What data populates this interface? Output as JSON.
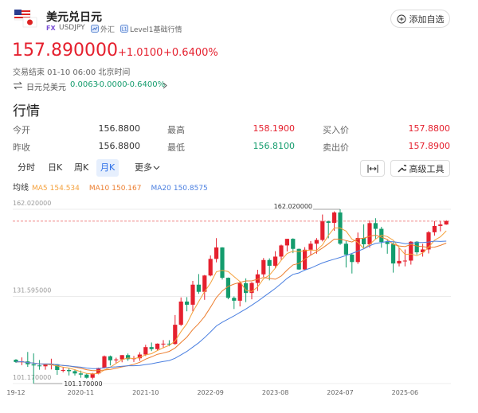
{
  "header": {
    "title": "美元兑日元",
    "tag": "FX",
    "code": "USDJPY",
    "market": "外汇",
    "level": "Level1基础行情",
    "button": "添加自选"
  },
  "quote": {
    "price": "157.890000",
    "change": "+1.0100",
    "change_pct": "+0.6400%",
    "status": "交易结束 01-10 06:00 北京时间",
    "inverse": {
      "name": "日元兑美元",
      "price": "0.0063",
      "change": "-0.0000",
      "change_pct": "-0.6400%"
    }
  },
  "section_title": "行情",
  "table": {
    "rows": [
      [
        "今开",
        "156.8800",
        "最高",
        "158.1900",
        "买入价",
        "157.8800"
      ],
      [
        "昨收",
        "156.8800",
        "最低",
        "156.8100",
        "卖出价",
        "157.8900"
      ]
    ]
  },
  "tabs": [
    "分时",
    "日K",
    "周K",
    "月K",
    "更多"
  ],
  "tools": "高级工具",
  "chart_data": {
    "type": "candlestick",
    "ma_title": "均线",
    "x": [
      "19-12",
      null,
      null,
      null,
      null,
      null,
      null,
      null,
      null,
      null,
      null,
      "2020-11",
      null,
      null,
      null,
      null,
      null,
      null,
      null,
      null,
      null,
      null,
      "2021-10",
      null,
      null,
      null,
      null,
      null,
      null,
      null,
      null,
      null,
      null,
      "2022-09",
      null,
      null,
      null,
      null,
      null,
      null,
      null,
      null,
      null,
      null,
      "2023-08",
      null,
      null,
      null,
      null,
      null,
      null,
      null,
      null,
      null,
      null,
      "2024-07",
      null,
      null,
      null,
      null,
      null,
      null,
      null,
      null,
      null,
      null,
      "2025-06",
      null,
      null,
      null,
      null,
      null,
      null,
      null
    ],
    "open": [
      109.5,
      108.7,
      108.9,
      107.9,
      107.5,
      107.2,
      107.8,
      107.9,
      105.9,
      105.9,
      105.5,
      104.7,
      104.3,
      103.2,
      104.7,
      106.6,
      110.7,
      109.3,
      109.6,
      111.1,
      109.7,
      110.0,
      111.3,
      113.9,
      113.2,
      115.1,
      115.1,
      115.0,
      121.7,
      129.8,
      128.7,
      135.7,
      133.2,
      138.9,
      144.7,
      148.7,
      138.1,
      131.1,
      130.1,
      136.2,
      132.8,
      136.3,
      139.3,
      144.3,
      142.3,
      145.5,
      149.4,
      151.7,
      148.2,
      141.0,
      147.9,
      150.0,
      151.3,
      157.8,
      157.3,
      160.9,
      150.0,
      146.2,
      143.6,
      152.0,
      149.8,
      157.2,
      155.2,
      150.6,
      149.9,
      143.1,
      144.0,
      144.1,
      150.7,
      147.0,
      148.0,
      154.0,
      156.2,
      156.7
    ],
    "high": [
      109.7,
      110.3,
      112.2,
      111.7,
      109.4,
      108.1,
      109.85,
      108.0,
      107.0,
      106.6,
      106.1,
      105.7,
      104.7,
      104.9,
      106.7,
      110.97,
      110.96,
      110.2,
      111.1,
      111.66,
      110.8,
      112.1,
      114.7,
      115.5,
      115.2,
      116.35,
      116.3,
      125.1,
      131.25,
      131.35,
      137.0,
      139.4,
      139.1,
      145.9,
      151.95,
      148.8,
      138.2,
      131.6,
      136.9,
      137.9,
      136.6,
      140.9,
      145.0,
      144.9,
      147.4,
      149.7,
      151.7,
      151.9,
      148.3,
      148.8,
      150.9,
      151.97,
      160.2,
      157.99,
      161.3,
      162.02,
      150.9,
      146.5,
      153.9,
      156.75,
      158.1,
      158.9,
      155.9,
      151.3,
      150.5,
      148.6,
      148.0,
      150.9,
      150.9,
      149.96,
      154.4,
      157.9,
      157.8,
      158.19
    ],
    "low": [
      108.4,
      107.6,
      107.0,
      101.17,
      105.99,
      105.99,
      106.1,
      104.2,
      105.1,
      104.0,
      104.0,
      103.2,
      102.9,
      102.6,
      104.4,
      106.4,
      107.5,
      108.3,
      108.6,
      109.1,
      108.7,
      109.1,
      110.8,
      112.5,
      112.6,
      113.5,
      114.2,
      114.7,
      121.3,
      126.4,
      126.4,
      132.5,
      130.4,
      138.6,
      143.5,
      137.5,
      130.6,
      127.2,
      128.1,
      129.6,
      130.6,
      133.5,
      138.4,
      137.2,
      141.5,
      144.4,
      147.3,
      146.7,
      140.9,
      140.8,
      145.9,
      146.5,
      150.8,
      151.9,
      154.5,
      149.6,
      141.7,
      139.6,
      142.97,
      148.6,
      148.6,
      151.7,
      148.6,
      146.5,
      139.9,
      142.1,
      142.1,
      142.7,
      146.2,
      145.5,
      146.6,
      152.8,
      154.3,
      156.6
    ],
    "close": [
      108.7,
      108.9,
      107.9,
      107.5,
      107.2,
      107.8,
      107.9,
      105.9,
      105.9,
      105.5,
      104.7,
      104.3,
      103.2,
      104.7,
      106.6,
      110.7,
      109.3,
      109.6,
      111.1,
      109.7,
      110.0,
      111.3,
      113.9,
      113.2,
      115.1,
      115.1,
      115.0,
      121.7,
      129.8,
      128.7,
      135.7,
      133.2,
      138.9,
      144.7,
      148.7,
      138.1,
      131.1,
      130.1,
      136.2,
      132.8,
      136.3,
      139.3,
      144.3,
      142.3,
      145.5,
      149.4,
      151.7,
      148.2,
      141.0,
      147.9,
      150.0,
      151.3,
      157.8,
      157.3,
      160.9,
      150.0,
      146.2,
      143.6,
      152.0,
      149.8,
      157.2,
      155.2,
      150.6,
      149.9,
      143.1,
      144.0,
      144.1,
      150.7,
      147.0,
      148.0,
      154.0,
      156.2,
      156.7,
      157.89
    ],
    "up_color": "#e5202e",
    "down_color": "#149c6d",
    "series": [
      {
        "name": "MA5",
        "value_label": "154.534",
        "color": "#f5a13c",
        "values": [
          108.7,
          108.8,
          108.5,
          108.3,
          108.0,
          107.9,
          107.7,
          107.3,
          106.9,
          106.6,
          106.0,
          105.3,
          104.7,
          104.5,
          104.7,
          105.9,
          106.9,
          108.2,
          109.5,
          110.1,
          109.9,
          110.3,
          111.2,
          111.6,
          112.7,
          113.7,
          114.5,
          116.0,
          119.3,
          122.1,
          126.2,
          129.8,
          133.3,
          136.2,
          140.2,
          140.7,
          140.3,
          138.5,
          136.8,
          133.7,
          133.3,
          134.9,
          137.8,
          139.0,
          141.5,
          144.2,
          146.6,
          147.4,
          147.2,
          147.6,
          147.8,
          147.7,
          149.6,
          152.9,
          155.5,
          155.5,
          154.4,
          151.6,
          150.5,
          148.3,
          149.8,
          151.6,
          153.0,
          152.5,
          151.2,
          148.6,
          146.3,
          146.4,
          145.8,
          146.8,
          148.8,
          151.2,
          152.4,
          154.5
        ]
      },
      {
        "name": "MA10",
        "value_label": "150.167",
        "color": "#ec7d2e",
        "values": [
          108.7,
          108.8,
          108.5,
          108.3,
          108.0,
          108.0,
          108.0,
          107.7,
          107.5,
          107.3,
          106.9,
          106.5,
          106.0,
          105.7,
          105.7,
          105.9,
          106.1,
          106.5,
          107.0,
          107.4,
          107.9,
          108.6,
          109.7,
          110.5,
          111.4,
          111.8,
          112.4,
          113.6,
          115.5,
          117.4,
          120.0,
          122.1,
          124.6,
          127.8,
          131.2,
          133.5,
          135.1,
          135.9,
          136.5,
          137.0,
          137.0,
          137.6,
          138.2,
          137.9,
          137.6,
          138.7,
          140.8,
          142.6,
          143.1,
          144.6,
          146.0,
          147.2,
          148.5,
          150.0,
          151.6,
          151.6,
          151.1,
          150.6,
          151.7,
          151.9,
          152.6,
          153.0,
          152.3,
          151.5,
          149.8,
          149.2,
          149.0,
          149.7,
          149.2,
          149.0,
          148.7,
          148.8,
          149.4,
          150.2
        ]
      },
      {
        "name": "MA20",
        "value_label": "150.8575",
        "color": "#4a7fe0",
        "values": [
          108.7,
          108.8,
          108.5,
          108.3,
          108.0,
          108.0,
          108.0,
          107.7,
          107.5,
          107.3,
          107.1,
          106.9,
          106.6,
          106.4,
          106.4,
          106.7,
          106.9,
          107.0,
          107.2,
          107.4,
          107.4,
          107.5,
          107.8,
          108.1,
          108.5,
          108.9,
          109.2,
          110.0,
          111.2,
          112.4,
          113.9,
          115.4,
          117.2,
          119.2,
          121.3,
          122.6,
          123.7,
          124.8,
          126.0,
          127.2,
          128.5,
          129.9,
          131.4,
          132.9,
          134.4,
          136.1,
          137.9,
          139.3,
          139.8,
          140.8,
          141.5,
          142.4,
          143.3,
          144.0,
          144.6,
          145.2,
          145.9,
          146.6,
          147.4,
          148.2,
          149.3,
          150.1,
          150.4,
          150.8,
          150.7,
          150.4,
          150.0,
          150.1,
          150.4,
          150.4,
          150.6,
          150.9,
          150.8,
          150.9
        ]
      }
    ],
    "current_price": 157.89,
    "annotations": {
      "high": "162.020000",
      "low": "101.170000"
    },
    "ylim": [
      101.17,
      162.02
    ],
    "yticks": [
      {
        "value": 162.02,
        "label": "162.020000"
      },
      {
        "value": 131.595,
        "label": "131.595000"
      },
      {
        "value": 101.17,
        "label": "101.170000"
      }
    ],
    "grid": true
  }
}
